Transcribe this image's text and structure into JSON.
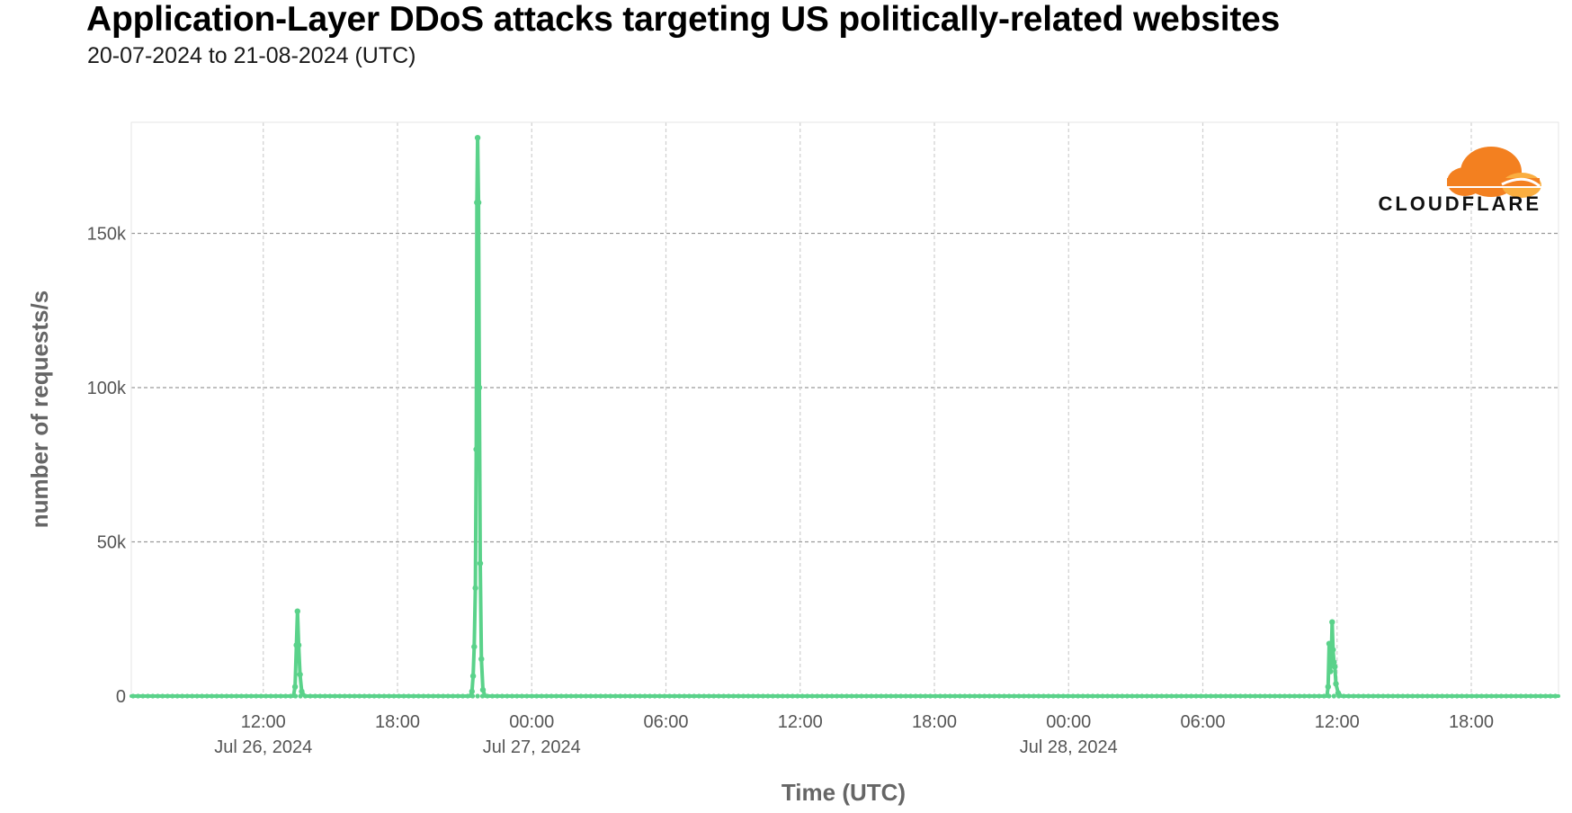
{
  "header": {
    "title": "Application-Layer DDoS attacks targeting US politically-related websites",
    "subtitle": "20-07-2024 to 21-08-2024 (UTC)"
  },
  "logo": {
    "text": "CLOUDFLARE",
    "colors": [
      "#f38020",
      "#faae40"
    ]
  },
  "chart_data": {
    "type": "line",
    "title": "Application-Layer DDoS attacks targeting US politically-related websites",
    "subtitle": "20-07-2024 to 21-08-2024 (UTC)",
    "xlabel": "Time (UTC)",
    "ylabel": "number of requests/s",
    "x_unit": "hours since Jul 26, 2024 00:00 UTC",
    "xlim": [
      6.1,
      69.9
    ],
    "ylim": [
      0,
      186000
    ],
    "grid": true,
    "line_color": "#5ad28a",
    "x_ticks": [
      {
        "x": 12,
        "label": "12:00",
        "date": "Jul 26, 2024"
      },
      {
        "x": 18,
        "label": "18:00",
        "date": ""
      },
      {
        "x": 24,
        "label": "00:00",
        "date": "Jul 27, 2024"
      },
      {
        "x": 30,
        "label": "06:00",
        "date": ""
      },
      {
        "x": 36,
        "label": "12:00",
        "date": ""
      },
      {
        "x": 42,
        "label": "18:00",
        "date": ""
      },
      {
        "x": 48,
        "label": "00:00",
        "date": "Jul 28, 2024"
      },
      {
        "x": 54,
        "label": "06:00",
        "date": ""
      },
      {
        "x": 60,
        "label": "12:00",
        "date": ""
      },
      {
        "x": 66,
        "label": "18:00",
        "date": ""
      }
    ],
    "y_ticks": [
      {
        "y": 0,
        "label": "0"
      },
      {
        "y": 50000,
        "label": "50k"
      },
      {
        "y": 100000,
        "label": "100k"
      },
      {
        "y": 150000,
        "label": "150k"
      }
    ],
    "series": [
      {
        "name": "requests/s",
        "points": [
          [
            6.1,
            0
          ],
          [
            13.35,
            0
          ],
          [
            13.42,
            3000
          ],
          [
            13.48,
            16500
          ],
          [
            13.53,
            27500
          ],
          [
            13.58,
            16500
          ],
          [
            13.64,
            7000
          ],
          [
            13.72,
            1500
          ],
          [
            13.85,
            0
          ],
          [
            21.25,
            0
          ],
          [
            21.33,
            1500
          ],
          [
            21.38,
            6500
          ],
          [
            21.43,
            16000
          ],
          [
            21.48,
            35000
          ],
          [
            21.52,
            80000
          ],
          [
            21.55,
            160000
          ],
          [
            21.58,
            181000
          ],
          [
            21.62,
            160000
          ],
          [
            21.66,
            100000
          ],
          [
            21.7,
            43000
          ],
          [
            21.75,
            12000
          ],
          [
            21.82,
            2000
          ],
          [
            21.92,
            0
          ],
          [
            59.55,
            0
          ],
          [
            59.6,
            3000
          ],
          [
            59.65,
            17000
          ],
          [
            59.7,
            8000
          ],
          [
            59.74,
            12000
          ],
          [
            59.78,
            24000
          ],
          [
            59.82,
            15000
          ],
          [
            59.86,
            11000
          ],
          [
            59.9,
            9500
          ],
          [
            59.95,
            4000
          ],
          [
            60.05,
            1000
          ],
          [
            60.2,
            0
          ],
          [
            69.9,
            0
          ]
        ]
      }
    ]
  }
}
